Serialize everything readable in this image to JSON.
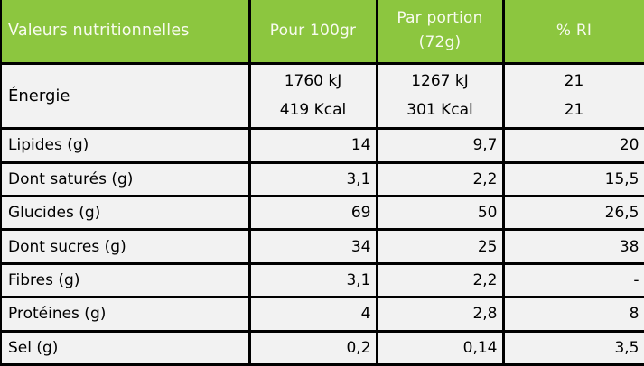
{
  "colors": {
    "header_bg": "#8CC63F",
    "header_text": "#F8FBEF",
    "row_bg": "#F2F2F2",
    "border": "#000000",
    "body_text": "#000000"
  },
  "header": {
    "col1": "Valeurs nutritionnelles",
    "col2": "Pour 100gr",
    "col3_line1": "Par portion",
    "col3_line2": "(72g)",
    "col4": "% RI"
  },
  "energy": {
    "label": "Énergie",
    "per100_line1": "1760 kJ",
    "per100_line2": "419 Kcal",
    "portion_line1": "1267 kJ",
    "portion_line2": "301 Kcal",
    "ri_line1": "21",
    "ri_line2": "21"
  },
  "rows": [
    {
      "label": "Lipides (g)",
      "per100": "14",
      "portion": "9,7",
      "ri": "20"
    },
    {
      "label": "Dont saturés (g)",
      "per100": "3,1",
      "portion": "2,2",
      "ri": "15,5"
    },
    {
      "label": "Glucides (g)",
      "per100": "69",
      "portion": "50",
      "ri": "26,5"
    },
    {
      "label": "Dont sucres (g)",
      "per100": "34",
      "portion": "25",
      "ri": "38"
    },
    {
      "label": "Fibres (g)",
      "per100": "3,1",
      "portion": "2,2",
      "ri": "-"
    },
    {
      "label": "Protéines (g)",
      "per100": "4",
      "portion": "2,8",
      "ri": "8"
    },
    {
      "label": "Sel (g)",
      "per100": "0,2",
      "portion": "0,14",
      "ri": "3,5"
    }
  ]
}
